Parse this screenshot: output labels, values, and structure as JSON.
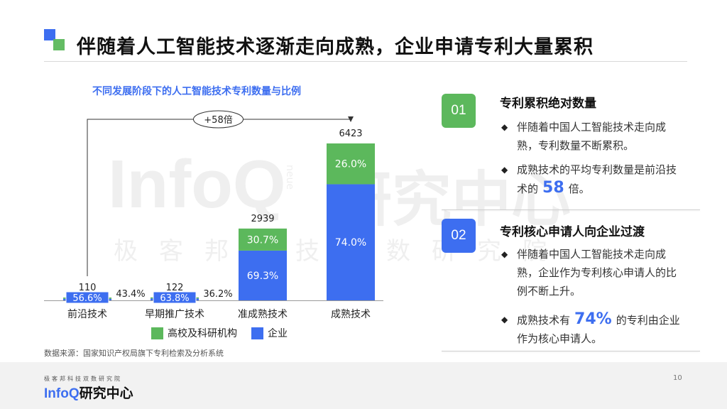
{
  "title": "伴随着人工智能技术逐渐走向成熟，企业申请专利大量累积",
  "watermark": {
    "en": "InfoQ",
    "cn": "研究中心",
    "sub": "极客邦科技双数研究院",
    "vertical": "neue"
  },
  "chart_data": {
    "type": "bar",
    "stacked": true,
    "title": "不同发展阶段下的人工智能技术专利数量与比例",
    "categories": [
      "前沿技术",
      "早期推广技术",
      "准成熟技术",
      "成熟技术"
    ],
    "totals": [
      110,
      122,
      2939,
      6423
    ],
    "series": [
      {
        "name": "企业",
        "percent": [
          56.6,
          63.8,
          69.3,
          74.0
        ],
        "labels": [
          "56.6%",
          "63.8%",
          "69.3%",
          "74.0%"
        ],
        "color": "#3d6ef0"
      },
      {
        "name": "高校及科研机构",
        "percent": [
          43.4,
          36.2,
          30.7,
          26.0
        ],
        "labels": [
          "43.4%",
          "36.2%",
          "30.7%",
          "26.0%"
        ],
        "color": "#5cb85c"
      }
    ],
    "ylim": [
      0,
      6423
    ],
    "annotation": "+58倍",
    "legend": "bottom",
    "grid": false
  },
  "source": "数据来源：国家知识产权局旗下专利检索及分析系统",
  "sections": [
    {
      "num": "01",
      "heading": "专利累积绝对数量",
      "bullets": [
        {
          "text": "伴随着中国人工智能技术走向成熟，专利数量不断累积。"
        },
        {
          "before": "成熟技术的平均专利数量是前沿技术的",
          "highlight": "58",
          "after": "倍。"
        }
      ]
    },
    {
      "num": "02",
      "heading": "专利核心申请人向企业过渡",
      "bullets": [
        {
          "text": "伴随着中国人工智能技术走向成熟，企业作为专利核心申请人的比例不断上升。"
        },
        {
          "before": "成熟技术有",
          "highlight": "74%",
          "after": "的专利由企业作为核心申请人。"
        }
      ]
    }
  ],
  "bullet_symbol": "◆",
  "footer": {
    "small": "极客邦科技双数研究院",
    "logo_en": "InfoQ",
    "logo_cn": "研究中心",
    "page": "10"
  },
  "colors": {
    "accent": "#3d6ef0",
    "green": "#5cb85c"
  }
}
